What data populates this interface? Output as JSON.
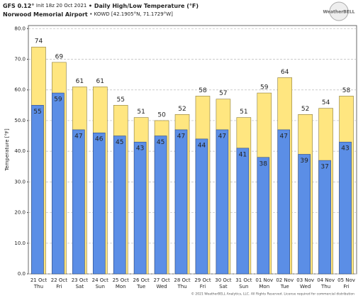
{
  "chart_data": {
    "type": "bar",
    "model": "GFS 0.12°",
    "init": "Init 18z 20 Oct 2021",
    "title": "• Daily High/Low Temperature (°F)",
    "location": "Norwood Memorial Airport",
    "station": "• KOWD [42.1905°N, 71.1729°W]",
    "logo": "WeatherBELL",
    "y_label": "Temperature [°F]",
    "footer": "© 2021 WeatherBELL Analytics, LLC. All Rights Reserved. License required for commercial distribution",
    "categories": [
      "21 Oct",
      "22 Oct",
      "23 Oct",
      "24 Oct",
      "25 Oct",
      "26 Oct",
      "27 Oct",
      "28 Oct",
      "29 Oct",
      "30 Oct",
      "31 Oct",
      "01 Nov",
      "02 Nov",
      "03 Nov",
      "04 Nov",
      "05 Nov"
    ],
    "weekdays": [
      "Thu",
      "Fri",
      "Sat",
      "Sun",
      "Mon",
      "Tue",
      "Wed",
      "Thu",
      "Fri",
      "Sat",
      "Sun",
      "Mon",
      "Tue",
      "Wed",
      "Thu",
      "Fri"
    ],
    "series": [
      {
        "name": "High",
        "color": "#ffe680",
        "values": [
          74,
          69,
          61,
          61,
          55,
          51,
          50,
          52,
          58,
          57,
          51,
          59,
          64,
          52,
          54,
          58
        ]
      },
      {
        "name": "Low",
        "color": "#5b8ee6",
        "values": [
          55,
          59,
          47,
          46,
          45,
          43,
          45,
          47,
          44,
          47,
          41,
          38,
          47,
          39,
          37,
          43
        ]
      }
    ],
    "ylim": [
      0,
      81
    ],
    "yticks": [
      {
        "value": 0,
        "label": "0.0"
      },
      {
        "value": 10,
        "label": "10.0"
      },
      {
        "value": 20,
        "label": "20.0"
      },
      {
        "value": 30,
        "label": "30.0"
      },
      {
        "value": 40,
        "label": "40.0"
      },
      {
        "value": 50,
        "label": "50.0"
      },
      {
        "value": 60,
        "label": "60.0"
      },
      {
        "value": 70,
        "label": "70.0"
      },
      {
        "value": 80,
        "label": "80.0"
      }
    ],
    "grid": true
  }
}
